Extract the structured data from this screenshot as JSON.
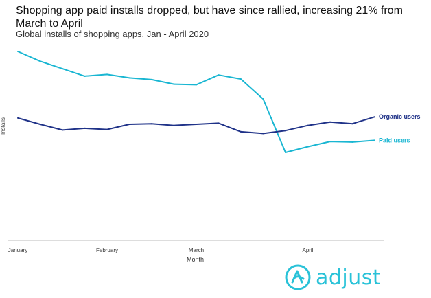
{
  "title": "Shopping app paid installs dropped, but have since rallied, increasing 21% from March to April",
  "subtitle": "Global installs of shopping apps, Jan - April 2020",
  "colors": {
    "organic": "#1f3288",
    "paid": "#19b6d2",
    "axis": "#bbbbbb",
    "logo": "#29c2d8"
  },
  "logo": {
    "text": "adjust",
    "icon": "adjust-logo-icon"
  },
  "chart_data": {
    "type": "line",
    "xlabel": "Month",
    "ylabel": "Installs",
    "x_tick_labels": [
      "January",
      "February",
      "March",
      "April"
    ],
    "x_tick_index": [
      0,
      4,
      8,
      13
    ],
    "x": [
      1,
      2,
      3,
      4,
      5,
      6,
      7,
      8,
      9,
      10,
      11,
      12,
      13,
      14,
      15,
      16,
      17
    ],
    "grid": false,
    "series": [
      {
        "name": "Paid users",
        "color": "#19b6d2",
        "values": [
          100,
          91.5,
          85,
          78.5,
          80,
          77,
          75.5,
          71.5,
          71,
          79.5,
          76,
          58.5,
          12,
          17,
          21.5,
          21,
          22.5
        ]
      },
      {
        "name": "Organic users",
        "color": "#1f3288",
        "values": [
          42,
          36.5,
          31.5,
          33,
          32,
          36.5,
          37,
          35.5,
          36.5,
          37.5,
          30,
          28.5,
          31,
          35.5,
          38.5,
          37,
          43
        ]
      }
    ]
  }
}
